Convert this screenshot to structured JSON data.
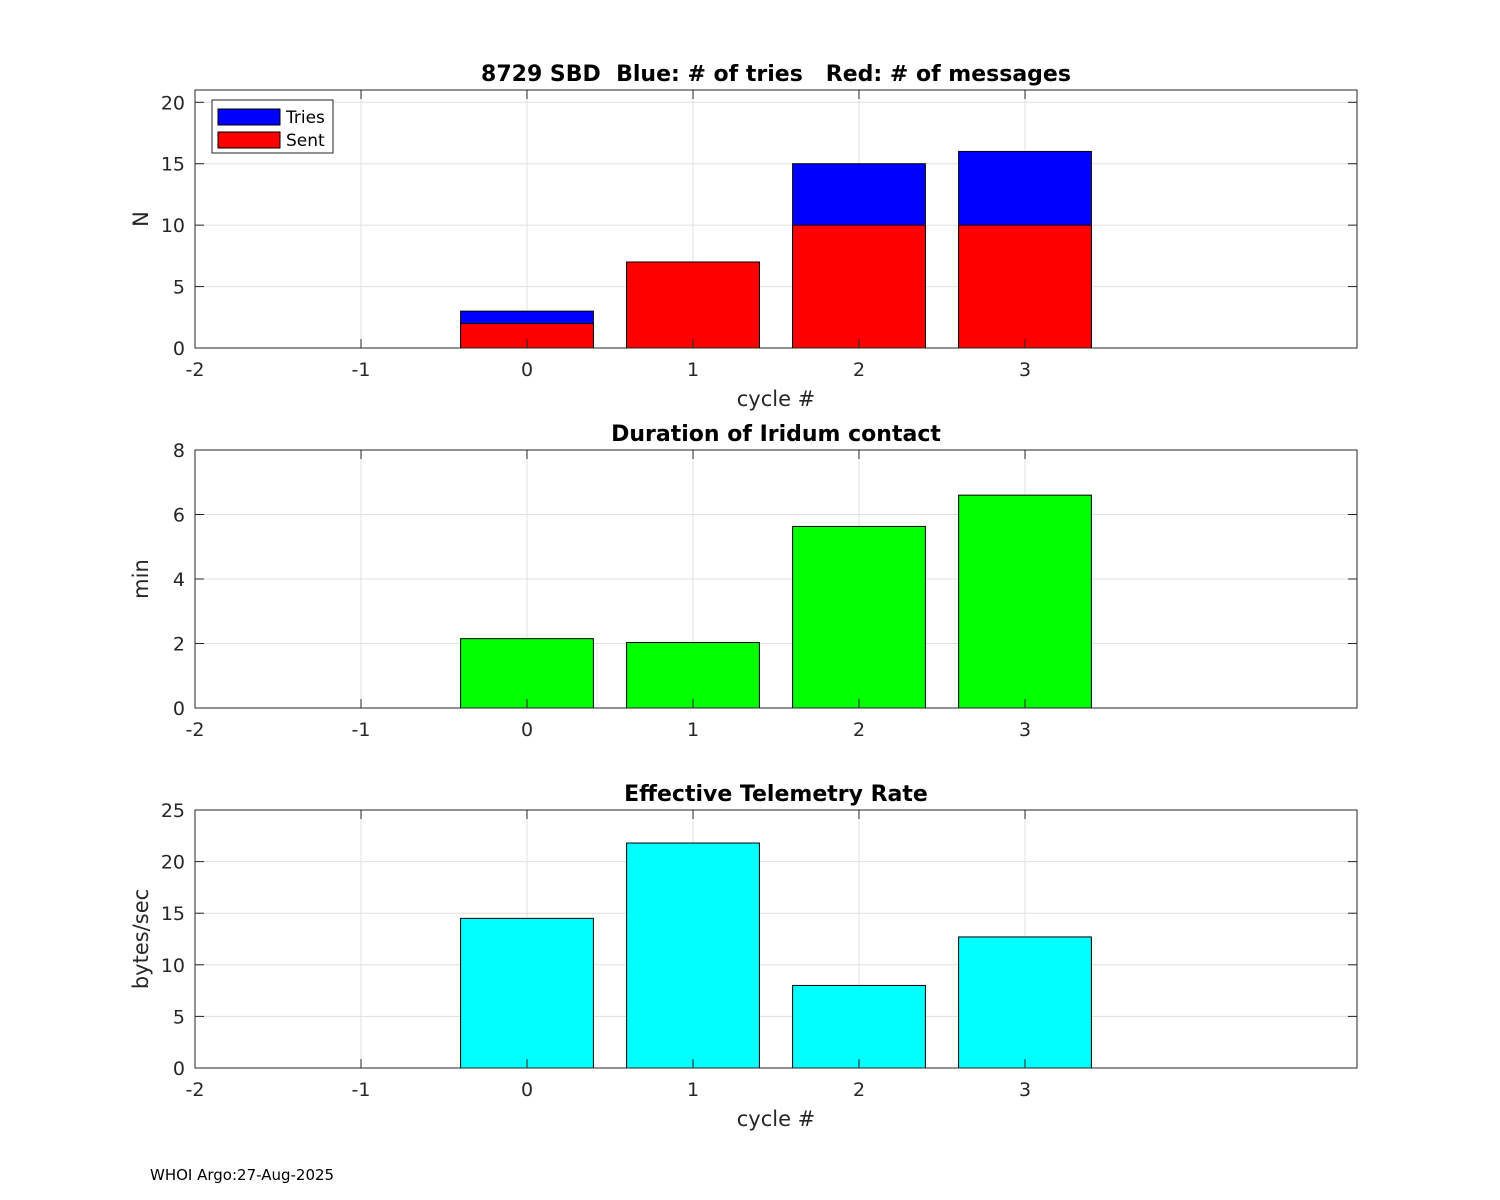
{
  "footer": "WHOI Argo:27-Aug-2025",
  "colors": {
    "tries": "#0000ff",
    "sent": "#ff0000",
    "duration": "#00ff00",
    "rate": "#00ffff",
    "grid": "#e0e0e0",
    "axis": "#262626"
  },
  "chart_data": [
    {
      "type": "bar",
      "stacked": false,
      "title": "8729 SBD  Blue: # of tries   Red: # of messages",
      "xlabel": "cycle #",
      "ylabel": "N",
      "xlim": [
        -2,
        5
      ],
      "ylim": [
        0,
        21
      ],
      "xticks": [
        -2,
        -1,
        0,
        1,
        2,
        3
      ],
      "yticks": [
        0,
        5,
        10,
        15,
        20
      ],
      "grid": true,
      "legend": {
        "position": "top-left",
        "entries": [
          "Tries",
          "Sent"
        ]
      },
      "x": [
        0,
        1,
        2,
        3
      ],
      "series": [
        {
          "name": "Tries",
          "color": "#0000ff",
          "values": [
            3,
            7,
            15,
            16
          ]
        },
        {
          "name": "Sent",
          "color": "#ff0000",
          "values": [
            2,
            7,
            10,
            10
          ]
        }
      ]
    },
    {
      "type": "bar",
      "title": "Duration of Iridum contact",
      "xlabel": "",
      "ylabel": "min",
      "xlim": [
        -2,
        5
      ],
      "ylim": [
        0,
        8
      ],
      "xticks": [
        -2,
        -1,
        0,
        1,
        2,
        3
      ],
      "yticks": [
        0,
        2,
        4,
        6,
        8
      ],
      "grid": true,
      "x": [
        0,
        1,
        2,
        3
      ],
      "series": [
        {
          "name": "Duration",
          "color": "#00ff00",
          "values": [
            2.15,
            2.03,
            5.63,
            6.6
          ]
        }
      ]
    },
    {
      "type": "bar",
      "title": "Effective Telemetry Rate",
      "xlabel": "cycle #",
      "ylabel": "bytes/sec",
      "xlim": [
        -2,
        5
      ],
      "ylim": [
        0,
        25
      ],
      "xticks": [
        -2,
        -1,
        0,
        1,
        2,
        3
      ],
      "yticks": [
        0,
        5,
        10,
        15,
        20,
        25
      ],
      "grid": true,
      "x": [
        0,
        1,
        2,
        3
      ],
      "series": [
        {
          "name": "Rate",
          "color": "#00ffff",
          "values": [
            14.5,
            21.8,
            8.0,
            12.7
          ]
        }
      ]
    }
  ]
}
